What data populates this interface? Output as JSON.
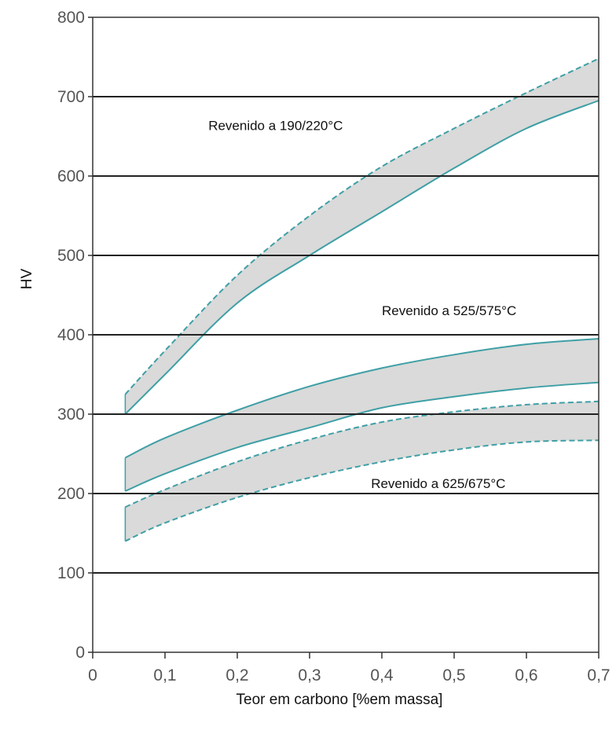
{
  "chart_data": {
    "type": "area",
    "xlabel": "Teor em carbono [%em massa]",
    "ylabel": "HV",
    "xlim": [
      0,
      0.7
    ],
    "ylim": [
      0,
      800
    ],
    "x_ticks": [
      "0",
      "0,1",
      "0,2",
      "0,3",
      "0,4",
      "0,5",
      "0,6",
      "0,7"
    ],
    "y_ticks": [
      "0",
      "100",
      "200",
      "300",
      "400",
      "500",
      "600",
      "700",
      "800"
    ],
    "grid": "horizontal",
    "series": [
      {
        "name": "Revenido a 190/220°C",
        "style": "solid-dashed",
        "upper": [
          [
            0.045,
            325
          ],
          [
            0.1,
            380
          ],
          [
            0.2,
            475
          ],
          [
            0.3,
            550
          ],
          [
            0.4,
            612
          ],
          [
            0.5,
            660
          ],
          [
            0.6,
            705
          ],
          [
            0.7,
            748
          ]
        ],
        "lower": [
          [
            0.045,
            300
          ],
          [
            0.1,
            350
          ],
          [
            0.2,
            440
          ],
          [
            0.3,
            500
          ],
          [
            0.4,
            555
          ],
          [
            0.5,
            610
          ],
          [
            0.6,
            660
          ],
          [
            0.7,
            695
          ]
        ]
      },
      {
        "name": "Revenido a 525/575°C",
        "style": "solid",
        "upper": [
          [
            0.045,
            245
          ],
          [
            0.1,
            270
          ],
          [
            0.2,
            305
          ],
          [
            0.3,
            335
          ],
          [
            0.4,
            358
          ],
          [
            0.5,
            375
          ],
          [
            0.6,
            388
          ],
          [
            0.7,
            395
          ]
        ],
        "lower": [
          [
            0.045,
            203
          ],
          [
            0.1,
            225
          ],
          [
            0.2,
            258
          ],
          [
            0.3,
            283
          ],
          [
            0.4,
            308
          ],
          [
            0.5,
            322
          ],
          [
            0.6,
            333
          ],
          [
            0.7,
            340
          ]
        ]
      },
      {
        "name": "Revenido a 625/675°C",
        "style": "dashed",
        "upper": [
          [
            0.045,
            183
          ],
          [
            0.1,
            205
          ],
          [
            0.2,
            240
          ],
          [
            0.3,
            268
          ],
          [
            0.4,
            290
          ],
          [
            0.5,
            303
          ],
          [
            0.6,
            312
          ],
          [
            0.7,
            316
          ]
        ],
        "lower": [
          [
            0.045,
            140
          ],
          [
            0.1,
            163
          ],
          [
            0.2,
            195
          ],
          [
            0.3,
            220
          ],
          [
            0.4,
            240
          ],
          [
            0.5,
            255
          ],
          [
            0.6,
            265
          ],
          [
            0.7,
            267
          ]
        ]
      }
    ],
    "annotations": [
      {
        "text": "Revenido a 190/220°C",
        "x": 0.16,
        "y": 658
      },
      {
        "text": "Revenido a 525/575°C",
        "x": 0.4,
        "y": 425
      },
      {
        "text": "Revenido a 625/675°C",
        "x": 0.385,
        "y": 207
      }
    ]
  },
  "colors": {
    "band_fill": "#d9dad9",
    "band_stroke": "#3f9fa6",
    "grid": "#222222",
    "axis": "#333333"
  }
}
